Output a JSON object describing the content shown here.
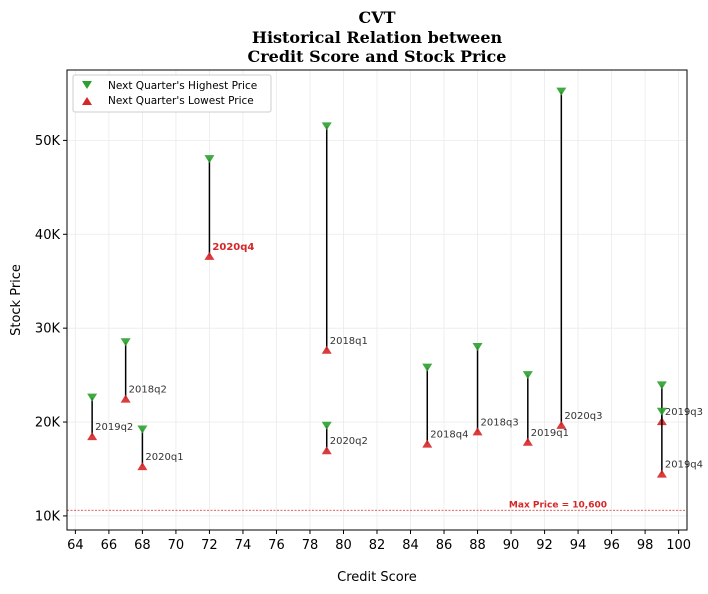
{
  "chart_data": {
    "type": "scatter",
    "title_lines": [
      "CVT",
      "Historical Relation between",
      "Credit Score and Stock Price"
    ],
    "xlabel": "Credit Score",
    "ylabel": "Stock Price",
    "xlim": [
      63.5,
      100.5
    ],
    "ylim": [
      8500,
      57500
    ],
    "x_ticks": [
      64,
      66,
      68,
      70,
      72,
      74,
      76,
      78,
      80,
      82,
      84,
      86,
      88,
      90,
      92,
      94,
      96,
      98,
      100
    ],
    "y_ticks": [
      {
        "value": 10000,
        "label": "10K"
      },
      {
        "value": 20000,
        "label": "20K"
      },
      {
        "value": 30000,
        "label": "30K"
      },
      {
        "value": 40000,
        "label": "40K"
      },
      {
        "value": 50000,
        "label": "50K"
      }
    ],
    "grid": true,
    "legend_position": "top-left",
    "colors": {
      "high": "#2ca02c",
      "low": "#d62728",
      "line": "#000000",
      "label": "#333333",
      "highlight": "#d62728"
    },
    "series": [
      {
        "name": "Next Quarter's Highest Price",
        "marker": "triangle-down"
      },
      {
        "name": "Next Quarter's Lowest Price",
        "marker": "triangle-up"
      }
    ],
    "points": [
      {
        "label": "2018q1",
        "x": 79,
        "high": 51500,
        "low": 27700
      },
      {
        "label": "2018q2",
        "x": 67,
        "high": 28500,
        "low": 22500
      },
      {
        "label": "2018q3",
        "x": 88,
        "high": 28000,
        "low": 19000
      },
      {
        "label": "2018q4",
        "x": 85,
        "high": 25800,
        "low": 17700
      },
      {
        "label": "2019q1",
        "x": 91,
        "high": 25000,
        "low": 17900
      },
      {
        "label": "2019q2",
        "x": 65,
        "high": 22600,
        "low": 18500
      },
      {
        "label": "2019q3",
        "x": 99,
        "high": 23900,
        "low": 20100
      },
      {
        "label": "2019q4",
        "x": 99,
        "high": 21100,
        "low": 14500
      },
      {
        "label": "2020q1",
        "x": 68,
        "high": 19200,
        "low": 15300
      },
      {
        "label": "2020q2",
        "x": 79,
        "high": 19600,
        "low": 17000
      },
      {
        "label": "2020q3",
        "x": 93,
        "high": 55200,
        "low": 19700
      },
      {
        "label": "2020q4",
        "x": 72,
        "high": 48000,
        "low": 37700,
        "highlight": true
      }
    ],
    "reference_line": {
      "y": 10600,
      "label": "Max Price = 10,600",
      "color": "#d62728"
    }
  }
}
